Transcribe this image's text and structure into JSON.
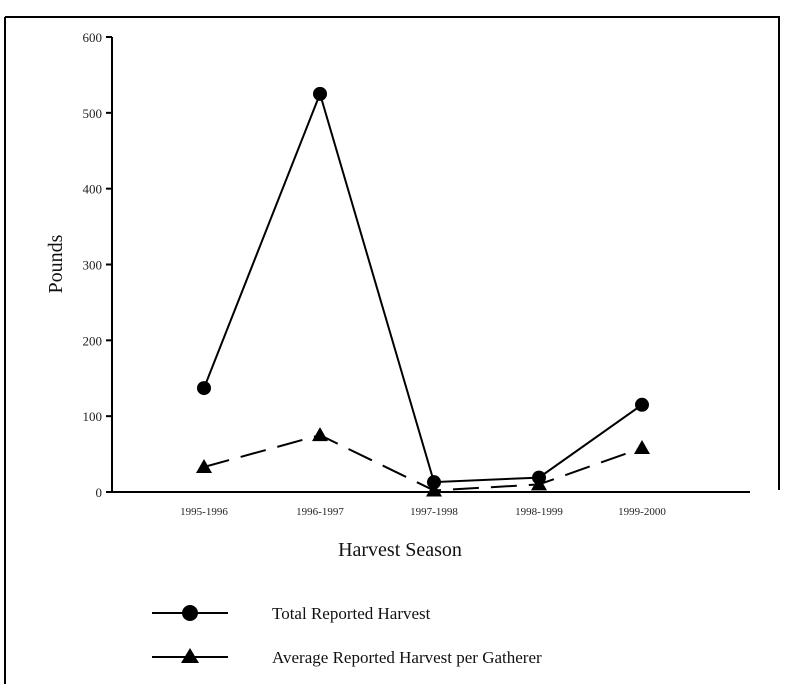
{
  "chart_data": {
    "type": "line",
    "title": "",
    "xlabel": "Harvest Season",
    "ylabel": "Pounds",
    "categories": [
      "1995-1996",
      "1996-1997",
      "1997-1998",
      "1998-1999",
      "1999-2000"
    ],
    "ylim": [
      0,
      600
    ],
    "yticks": [
      0,
      100,
      200,
      300,
      400,
      500,
      600
    ],
    "grid": false,
    "legend_position": "bottom-left",
    "series": [
      {
        "name": "Total Reported Harvest",
        "marker": "circle",
        "line_style": "solid",
        "color": "#000000",
        "values": [
          137,
          525,
          13,
          19,
          115
        ]
      },
      {
        "name": "Average Reported Harvest per Gatherer",
        "marker": "triangle",
        "line_style": "dashed",
        "color": "#000000",
        "values": [
          33,
          75,
          2,
          10,
          58
        ]
      }
    ]
  }
}
